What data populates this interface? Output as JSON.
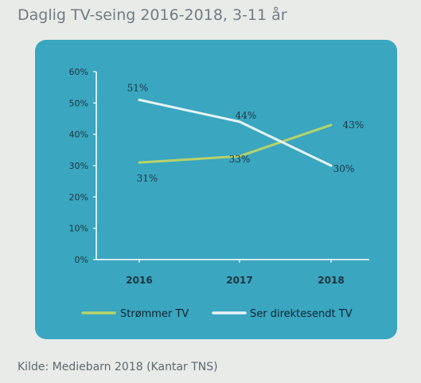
{
  "title": "Daglig TV-seing 2016-2018, 3-11 år",
  "source": "Kilde: Mediebarn 2018 (Kantar TNS)",
  "colors": {
    "panel": "#3aa6bf",
    "series_streaming": "#b6d36a",
    "series_live": "#e6f4f7"
  },
  "chart_data": {
    "type": "line",
    "title": "Daglig TV-seing 2016-2018, 3-11 år",
    "categories": [
      "2016",
      "2017",
      "2018"
    ],
    "series": [
      {
        "name": "Strømmer TV",
        "values": [
          31,
          33,
          43
        ],
        "labels": [
          "31%",
          "33%",
          "43%"
        ]
      },
      {
        "name": "Ser direktesendt TV",
        "values": [
          51,
          44,
          30
        ],
        "labels": [
          "51%",
          "44%",
          "30%"
        ]
      }
    ],
    "ylim": [
      0,
      60
    ],
    "yticks": [
      "0%",
      "10%",
      "20%",
      "30%",
      "40%",
      "50%",
      "60%"
    ],
    "grid": false,
    "legend_position": "bottom"
  }
}
